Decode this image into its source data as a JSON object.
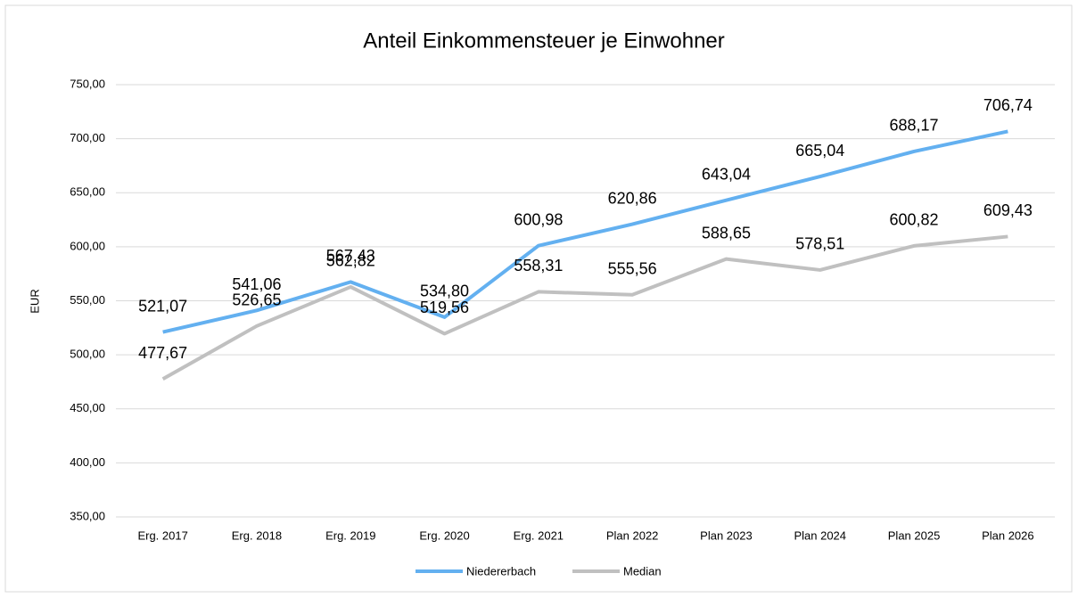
{
  "chart_data": {
    "type": "line",
    "title": "Anteil Einkommensteuer je Einwohner",
    "y_label": "EUR",
    "categories": [
      "Erg. 2017",
      "Erg. 2018",
      "Erg. 2019",
      "Erg. 2020",
      "Erg. 2021",
      "Plan 2022",
      "Plan 2023",
      "Plan 2024",
      "Plan 2025",
      "Plan 2026"
    ],
    "series": [
      {
        "name": "Niedererbach",
        "color": "#63b0f0",
        "values": [
          521.07,
          541.06,
          567.43,
          534.8,
          600.98,
          620.86,
          643.04,
          665.04,
          688.17,
          706.74
        ],
        "value_labels": [
          "521,07",
          "541,06",
          "567,43",
          "534,80",
          "600,98",
          "620,86",
          "643,04",
          "665,04",
          "688,17",
          "706,74"
        ]
      },
      {
        "name": "Median",
        "color": "#c0c0c0",
        "values": [
          477.67,
          526.65,
          562.82,
          519.56,
          558.31,
          555.56,
          588.65,
          578.51,
          600.82,
          609.43
        ],
        "value_labels": [
          "477,67",
          "526,65",
          "562,82",
          "519,56",
          "558,31",
          "555,56",
          "588,65",
          "578,51",
          "600,82",
          "609,43"
        ]
      }
    ],
    "ylim": [
      350,
      750
    ],
    "yticks": [
      {
        "value": 350,
        "label": "350,00"
      },
      {
        "value": 400,
        "label": "400,00"
      },
      {
        "value": 450,
        "label": "450,00"
      },
      {
        "value": 500,
        "label": "500,00"
      },
      {
        "value": 550,
        "label": "550,00"
      },
      {
        "value": 600,
        "label": "600,00"
      },
      {
        "value": 650,
        "label": "650,00"
      },
      {
        "value": 700,
        "label": "700,00"
      },
      {
        "value": 750,
        "label": "750,00"
      }
    ],
    "grid": true,
    "legend": "bottom"
  }
}
